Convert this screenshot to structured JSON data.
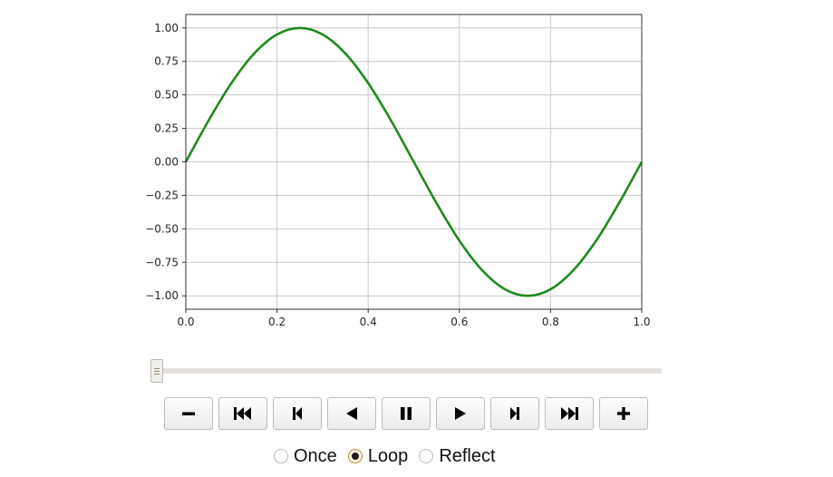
{
  "chart_data": {
    "type": "line",
    "function": "sin(2*pi*x)",
    "x": [
      0.0,
      0.05,
      0.1,
      0.15,
      0.2,
      0.25,
      0.3,
      0.35,
      0.4,
      0.45,
      0.5,
      0.55,
      0.6,
      0.65,
      0.7,
      0.75,
      0.8,
      0.85,
      0.9,
      0.95,
      1.0
    ],
    "y": [
      0.0,
      0.309,
      0.588,
      0.809,
      0.951,
      1.0,
      0.951,
      0.809,
      0.588,
      0.309,
      0.0,
      -0.309,
      -0.588,
      -0.809,
      -0.951,
      -1.0,
      -0.951,
      -0.809,
      -0.588,
      -0.309,
      0.0
    ],
    "xlim": [
      0.0,
      1.0
    ],
    "ylim": [
      -1.1,
      1.1
    ],
    "xticks": [
      0.0,
      0.2,
      0.4,
      0.6,
      0.8,
      1.0
    ],
    "xtick_labels": [
      "0.0",
      "0.2",
      "0.4",
      "0.6",
      "0.8",
      "1.0"
    ],
    "yticks": [
      1.0,
      0.75,
      0.5,
      0.25,
      0.0,
      -0.25,
      -0.5,
      -0.75,
      -1.0
    ],
    "ytick_labels": [
      "1.00",
      "0.75",
      "0.50",
      "0.25",
      "0.00",
      "−0.25",
      "−0.50",
      "−0.75",
      "−1.00"
    ],
    "grid": true,
    "line_color": "#1f8a1f",
    "title": "",
    "xlabel": "",
    "ylabel": ""
  },
  "animation": {
    "frame_position": 0.0,
    "buttons": [
      {
        "name": "decrease-speed-button",
        "icon": "minus-icon"
      },
      {
        "name": "first-frame-button",
        "icon": "skip-to-start-icon"
      },
      {
        "name": "previous-frame-button",
        "icon": "step-back-icon"
      },
      {
        "name": "play-reverse-button",
        "icon": "play-reverse-icon"
      },
      {
        "name": "pause-button",
        "icon": "pause-icon"
      },
      {
        "name": "play-button",
        "icon": "play-icon"
      },
      {
        "name": "next-frame-button",
        "icon": "step-forward-icon"
      },
      {
        "name": "last-frame-button",
        "icon": "skip-to-end-icon"
      },
      {
        "name": "increase-speed-button",
        "icon": "plus-icon"
      }
    ],
    "modes": [
      {
        "label": "Once",
        "checked": false
      },
      {
        "label": "Loop",
        "checked": true
      },
      {
        "label": "Reflect",
        "checked": false
      }
    ]
  }
}
